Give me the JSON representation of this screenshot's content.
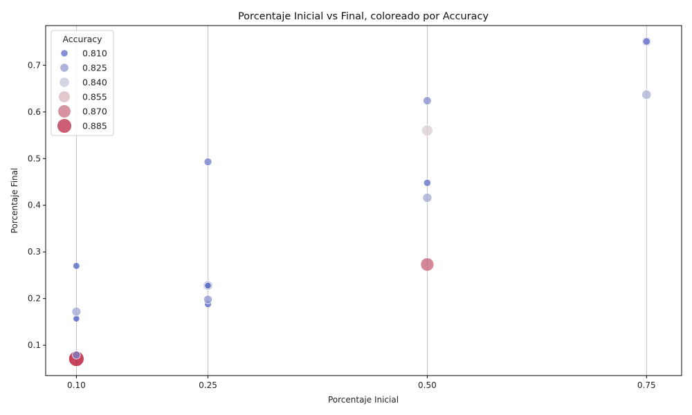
{
  "chart_data": {
    "type": "scatter",
    "title": "Porcentaje Inicial vs Final, coloreado por Accuracy",
    "xlabel": "Porcentaje Inicial",
    "ylabel": "Porcentaje Final",
    "xlim": [
      0.065,
      0.79
    ],
    "ylim": [
      0.035,
      0.785
    ],
    "xticks": [
      0.1,
      0.25,
      0.5,
      0.75
    ],
    "xtick_labels": [
      "0.10",
      "0.25",
      "0.50",
      "0.75"
    ],
    "yticks": [
      0.1,
      0.2,
      0.3,
      0.4,
      0.5,
      0.6,
      0.7
    ],
    "ytick_labels": [
      "0.1",
      "0.2",
      "0.3",
      "0.4",
      "0.5",
      "0.6",
      "0.7"
    ],
    "grid": "vertical lines at x ticks",
    "hue": "Accuracy",
    "size": "Accuracy",
    "legend": {
      "title": "Accuracy",
      "placement": "upper-left",
      "entries": [
        {
          "label": "0.810",
          "value": 0.81
        },
        {
          "label": "0.825",
          "value": 0.825
        },
        {
          "label": "0.840",
          "value": 0.84
        },
        {
          "label": "0.855",
          "value": 0.855
        },
        {
          "label": "0.870",
          "value": 0.87
        },
        {
          "label": "0.885",
          "value": 0.885
        }
      ]
    },
    "points": [
      {
        "x": 0.1,
        "y": 0.071,
        "accuracy": 0.893
      },
      {
        "x": 0.1,
        "y": 0.079,
        "accuracy": 0.818
      },
      {
        "x": 0.1,
        "y": 0.157,
        "accuracy": 0.803
      },
      {
        "x": 0.1,
        "y": 0.172,
        "accuracy": 0.828
      },
      {
        "x": 0.1,
        "y": 0.27,
        "accuracy": 0.806
      },
      {
        "x": 0.25,
        "y": 0.188,
        "accuracy": 0.807
      },
      {
        "x": 0.25,
        "y": 0.198,
        "accuracy": 0.822
      },
      {
        "x": 0.25,
        "y": 0.228,
        "accuracy": 0.832
      },
      {
        "x": 0.25,
        "y": 0.228,
        "accuracy": 0.803
      },
      {
        "x": 0.25,
        "y": 0.493,
        "accuracy": 0.815
      },
      {
        "x": 0.5,
        "y": 0.273,
        "accuracy": 0.873
      },
      {
        "x": 0.5,
        "y": 0.416,
        "accuracy": 0.83
      },
      {
        "x": 0.5,
        "y": 0.448,
        "accuracy": 0.81
      },
      {
        "x": 0.5,
        "y": 0.56,
        "accuracy": 0.85
      },
      {
        "x": 0.5,
        "y": 0.624,
        "accuracy": 0.82
      },
      {
        "x": 0.75,
        "y": 0.637,
        "accuracy": 0.832
      },
      {
        "x": 0.75,
        "y": 0.751,
        "accuracy": 0.83
      },
      {
        "x": 0.75,
        "y": 0.751,
        "accuracy": 0.812
      }
    ]
  },
  "colors": {
    "low": "#3b4cc0",
    "mid": "#dddddd",
    "high": "#b40426",
    "grid": "#b0b0b0",
    "axis": "#000000"
  }
}
